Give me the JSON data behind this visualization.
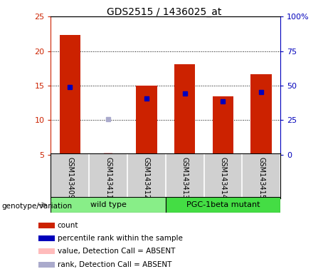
{
  "title": "GDS2515 / 1436025_at",
  "samples": [
    "GSM143409",
    "GSM143411",
    "GSM143412",
    "GSM143413",
    "GSM143414",
    "GSM143415"
  ],
  "count_values": [
    22.3,
    null,
    15.0,
    18.1,
    13.5,
    16.7
  ],
  "absent_count_values": [
    null,
    5.3,
    null,
    null,
    null,
    null
  ],
  "percentile_values": [
    14.8,
    null,
    13.1,
    13.9,
    12.7,
    14.1
  ],
  "absent_percentile_values": [
    null,
    10.2,
    null,
    null,
    null,
    null
  ],
  "ylim_left": [
    5,
    25
  ],
  "ylim_right": [
    0,
    100
  ],
  "yticks_left": [
    5,
    10,
    15,
    20,
    25
  ],
  "yticks_right": [
    0,
    25,
    50,
    75,
    100
  ],
  "ytick_labels_left": [
    "5",
    "10",
    "15",
    "20",
    "25"
  ],
  "ytick_labels_right": [
    "0",
    "25",
    "50",
    "75",
    "100%"
  ],
  "groups": [
    {
      "label": "wild type",
      "samples_idx": [
        0,
        1,
        2
      ],
      "color": "#88ee88"
    },
    {
      "label": "PGC-1beta mutant",
      "samples_idx": [
        3,
        4,
        5
      ],
      "color": "#44dd44"
    }
  ],
  "bar_width": 0.55,
  "count_color": "#cc2200",
  "absent_count_color": "#ffbbbb",
  "percentile_color": "#0000bb",
  "absent_percentile_color": "#aaaacc",
  "left_axis_color": "#cc2200",
  "right_axis_color": "#0000bb",
  "bg_color": "#ffffff",
  "plot_bg_color": "#ffffff",
  "label_area_color": "#d0d0d0",
  "group_label_text": "genotype/variation",
  "legend_items": [
    {
      "label": "count",
      "color": "#cc2200"
    },
    {
      "label": "percentile rank within the sample",
      "color": "#0000bb"
    },
    {
      "label": "value, Detection Call = ABSENT",
      "color": "#ffbbbb"
    },
    {
      "label": "rank, Detection Call = ABSENT",
      "color": "#aaaacc"
    }
  ]
}
